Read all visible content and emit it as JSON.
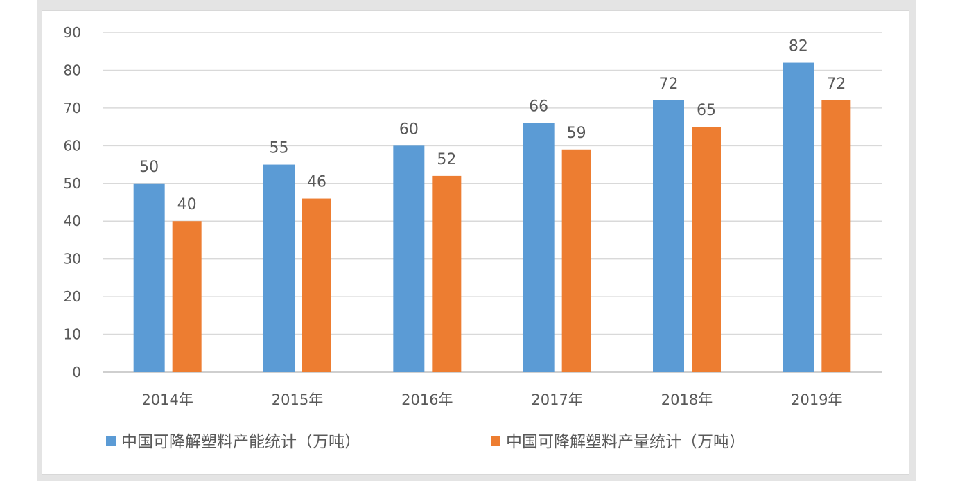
{
  "chart_data": {
    "type": "bar",
    "categories": [
      "2014年",
      "2015年",
      "2016年",
      "2017年",
      "2018年",
      "2019年"
    ],
    "series": [
      {
        "name": "中国可降解塑料产能统计（万吨）",
        "values": [
          50,
          55,
          60,
          66,
          72,
          82
        ],
        "color": "#5B9BD5"
      },
      {
        "name": "中国可降解塑料产量统计（万吨）",
        "values": [
          40,
          46,
          52,
          59,
          65,
          72
        ],
        "color": "#ED7D31"
      }
    ],
    "yticks": [
      "0",
      "10",
      "20",
      "30",
      "40",
      "50",
      "60",
      "70",
      "80",
      "90"
    ],
    "ylim": [
      0,
      90
    ],
    "grid": true,
    "legend": "bottom",
    "data_labels": true
  }
}
